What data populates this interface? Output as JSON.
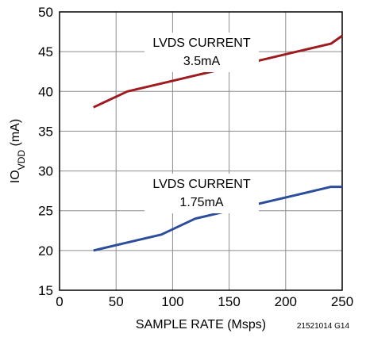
{
  "chart_data": {
    "type": "line",
    "xlabel": "SAMPLE RATE (Msps)",
    "ylabel_main": "IO",
    "ylabel_sub": "VDD",
    "ylabel_unit": " (mA)",
    "xlim": [
      0,
      250
    ],
    "ylim": [
      15,
      50
    ],
    "xticks": [
      "0",
      "50",
      "100",
      "150",
      "200",
      "250"
    ],
    "yticks": [
      "15",
      "20",
      "25",
      "30",
      "35",
      "40",
      "45",
      "50"
    ],
    "grid": true,
    "series": [
      {
        "color": "#9e1b20",
        "x": [
          30,
          60,
          90,
          120,
          150,
          180,
          210,
          240,
          250
        ],
        "y": [
          38,
          40,
          41,
          42,
          43,
          44,
          45,
          46,
          47
        ]
      },
      {
        "color": "#2b4d9c",
        "x": [
          30,
          60,
          90,
          120,
          150,
          180,
          210,
          240,
          250
        ],
        "y": [
          20,
          21,
          22,
          24,
          25,
          26,
          27,
          28,
          28
        ]
      }
    ],
    "annotations": [
      {
        "line1": "LVDS CURRENT",
        "line2": "3.5mA"
      },
      {
        "line1": "LVDS CURRENT",
        "line2": "1.75mA"
      }
    ],
    "figure_id": "21521014 G14"
  }
}
